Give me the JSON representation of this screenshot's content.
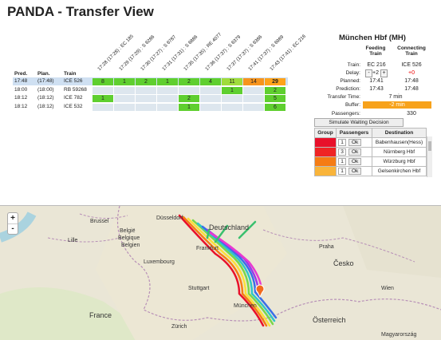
{
  "title": "PANDA - Transfer View",
  "transfers": {
    "columns": [
      "17:28 (17:28) : EC 185",
      "17:29 (17:29) : S 6286",
      "17:30 (17:27) : S 6787",
      "17:31 (17:31) : S 6886",
      "17:35 (17:35) : RE 4077",
      "17:36 (17:37) : S 6379",
      "17:37 (17:37) : S 6386",
      "17:41 (17:37) : S 6989",
      "17:43 (17:41) : EC 216"
    ],
    "row_headers": [
      "Pred.",
      "Plan.",
      "Train"
    ],
    "rows": [
      {
        "pred": "17:48",
        "plan": "(17:48)",
        "train": "ICE 526",
        "cells": [
          8,
          1,
          2,
          1,
          2,
          4,
          11,
          14,
          29
        ],
        "colors": [
          "#5fcf2f",
          "#5fcf2f",
          "#5fcf2f",
          "#5fcf2f",
          "#5fcf2f",
          "#5fcf2f",
          "#9fdc3c",
          "#f7941d",
          "#ffa31a"
        ]
      },
      {
        "pred": "18:00",
        "plan": "(18:00)",
        "train": "RB 59268",
        "cells": [
          null,
          null,
          null,
          null,
          null,
          null,
          1,
          null,
          2
        ],
        "colors": [
          null,
          null,
          null,
          null,
          null,
          null,
          "#5fcf2f",
          null,
          "#5fcf2f"
        ]
      },
      {
        "pred": "18:12",
        "plan": "(18:12)",
        "train": "ICE 782",
        "cells": [
          1,
          null,
          null,
          null,
          2,
          null,
          null,
          null,
          5
        ],
        "colors": [
          "#5fcf2f",
          null,
          null,
          null,
          "#5fcf2f",
          null,
          null,
          null,
          "#5fcf2f"
        ]
      },
      {
        "pred": "18:12",
        "plan": "(18:12)",
        "train": "ICE 532",
        "cells": [
          null,
          null,
          null,
          null,
          1,
          null,
          null,
          null,
          6
        ],
        "colors": [
          null,
          null,
          null,
          null,
          "#5fcf2f",
          null,
          null,
          null,
          "#5fcf2f"
        ]
      }
    ]
  },
  "station": {
    "name": "München Hbf (MH)",
    "feeding_header": "Feeding Train",
    "connecting_header": "Connecting Train",
    "labels": [
      "Train:",
      "Delay:",
      "Planned:",
      "Prediction:",
      "Transfer Time:",
      "Buffer:",
      "Passengers:"
    ],
    "feeding": {
      "train": "EC 216",
      "delay": "+2",
      "planned": "17:41",
      "prediction": "17:43"
    },
    "connecting": {
      "train": "ICE 526",
      "delay": "+0",
      "planned": "17:48",
      "prediction": "17:48"
    },
    "delay_minus": "-",
    "delay_plus": "+",
    "transfer_time": "7 min",
    "buffer": "-2 min",
    "passengers": 330,
    "button": "Simulate Waiting Decision",
    "groups_header": [
      "Group",
      "Passengers",
      "Destination"
    ],
    "groups": [
      {
        "color": "#e8102a",
        "passengers": 1,
        "action": "Ok",
        "destination": "Babenhausen(Hess)"
      },
      {
        "color": "#ef2424",
        "passengers": 3,
        "action": "Ok",
        "destination": "Nürnberg Hbf"
      },
      {
        "color": "#f57c14",
        "passengers": 1,
        "action": "Ok",
        "destination": "Würzburg Hbf"
      },
      {
        "color": "#f9b43a",
        "passengers": 1,
        "action": "Ok",
        "destination": "Gelsenkirchen Hbf"
      }
    ]
  },
  "map": {
    "zoom_in": "+",
    "zoom_out": "-",
    "labels": [
      "Deutschland",
      "België",
      "Belgique",
      "Belgien",
      "Luxembourg",
      "France",
      "Česko",
      "Österreich",
      "Magyarország",
      "München",
      "Brussel",
      "Frankfurt",
      "Stuttgart",
      "Praha",
      "Zürich",
      "Wien",
      "Düsseldorf",
      "Lille"
    ]
  }
}
